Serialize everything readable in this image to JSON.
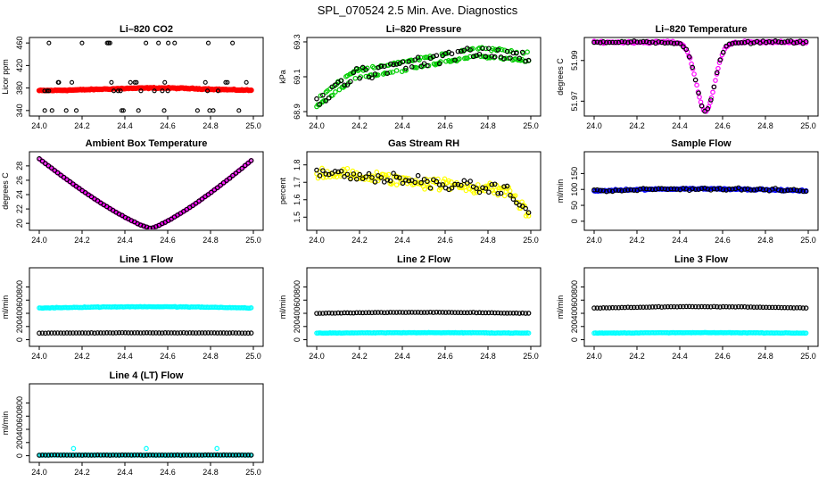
{
  "figure_title": "SPL_070524  2.5 Min. Ave. Diagnostics",
  "colors": {
    "red": "#ff0000",
    "green": "#00cc00",
    "magenta": "#ff00ff",
    "yellow": "#ffff00",
    "blue": "#0000ff",
    "cyan": "#00ffff",
    "black": "#000000"
  },
  "chart_data": [
    {
      "type": "scatter",
      "title": "Li–820 CO2",
      "ylabel": "Licor ppm",
      "xlim": [
        24.0,
        25.0
      ],
      "ylim": [
        335,
        465
      ],
      "xticks": [
        "24.0",
        "24.2",
        "24.4",
        "24.6",
        "24.8",
        "25.0"
      ],
      "yticks": [
        340,
        380,
        420,
        460
      ],
      "series": [
        {
          "name": "ave",
          "color": "red",
          "shape": "dense",
          "from": 375,
          "to": 375,
          "mid": 380,
          "sharp": 0.35,
          "noise": 1,
          "gap": 0
        },
        {
          "name": "raw",
          "color": "black",
          "shape": "scatter",
          "levels": [
            340,
            375,
            390,
            460
          ]
        }
      ]
    },
    {
      "type": "scatter",
      "title": "Li–820 Pressure",
      "ylabel": "kPa",
      "xlim": [
        24.0,
        25.0
      ],
      "ylim": [
        68.89,
        69.31
      ],
      "xticks": [
        "24.0",
        "24.2",
        "24.4",
        "24.6",
        "24.8",
        "25.0"
      ],
      "yticks": [
        {
          "v": 68.9,
          "l": "68.9"
        },
        {
          "v": 69.1,
          "l": "69.1"
        },
        {
          "v": 69.3,
          "l": "69.3"
        }
      ],
      "series": [
        {
          "name": "ave",
          "color": "green",
          "shape": "pressure",
          "offset": 0.0,
          "noise": 0.008,
          "gap": 0.045
        },
        {
          "name": "raw",
          "color": "black",
          "shape": "pressure",
          "offset": 0.0,
          "noise": 0.014,
          "sparse": true,
          "gap": 0.045
        }
      ]
    },
    {
      "type": "scatter",
      "title": "Li–820 Temperature",
      "ylabel": "degrees C",
      "xlim": [
        24.0,
        25.0
      ],
      "ylim": [
        51.964,
        52.0
      ],
      "xticks": [
        "24.0",
        "24.2",
        "24.4",
        "24.6",
        "24.8",
        "25.0"
      ],
      "yticks": [
        {
          "v": 51.97,
          "l": "51.97"
        },
        {
          "v": 51.99,
          "l": "51.99"
        }
      ],
      "series": [
        {
          "name": "ave",
          "color": "magenta",
          "shape": "dip",
          "base": 51.999,
          "low": 51.965,
          "center": 24.52,
          "width": 0.06,
          "noise": 0.0006
        },
        {
          "name": "raw",
          "color": "black",
          "shape": "dip",
          "base": 51.999,
          "low": 51.965,
          "center": 24.52,
          "width": 0.06,
          "noise": 0.0008,
          "sparse": true
        }
      ]
    },
    {
      "type": "scatter",
      "title": "Ambient Box Temperature",
      "ylabel": "degrees C",
      "xlim": [
        24.0,
        25.0
      ],
      "ylim": [
        19.4,
        29.6
      ],
      "xticks": [
        "24.0",
        "24.2",
        "24.4",
        "24.6",
        "24.8",
        "25.0"
      ],
      "yticks": [
        20,
        22,
        24,
        26,
        28
      ],
      "series": [
        {
          "name": "ave",
          "color": "magenta",
          "shape": "vee",
          "high": 29.0,
          "low": 19.3,
          "center": 24.52,
          "noise": 0.03
        },
        {
          "name": "raw",
          "color": "black",
          "shape": "vee",
          "high": 29.0,
          "low": 19.3,
          "center": 24.52,
          "noise": 0.05,
          "sparse": true
        }
      ]
    },
    {
      "type": "scatter",
      "title": "Gas Stream RH",
      "ylabel": "percent",
      "xlim": [
        24.0,
        25.0
      ],
      "ylim": [
        1.44,
        1.86
      ],
      "xticks": [
        "24.0",
        "24.2",
        "24.4",
        "24.6",
        "24.8",
        "25.0"
      ],
      "yticks": [
        1.5,
        1.6,
        1.7,
        1.8
      ],
      "series": [
        {
          "name": "ave",
          "color": "yellow",
          "shape": "rh",
          "noise": 0.045
        },
        {
          "name": "raw",
          "color": "black",
          "shape": "rh",
          "noise": 0.04,
          "sparse": true
        }
      ]
    },
    {
      "type": "scatter",
      "title": "Sample Flow",
      "ylabel": "ml/min",
      "xlim": [
        24.0,
        25.0
      ],
      "ylim": [
        -20,
        210
      ],
      "xticks": [
        "24.0",
        "24.2",
        "24.4",
        "24.6",
        "24.8",
        "25.0"
      ],
      "yticks": [
        0,
        50,
        100,
        150
      ],
      "series": [
        {
          "name": "ave",
          "color": "blue",
          "shape": "flat",
          "level": 95,
          "bump": 7,
          "noise": 3
        },
        {
          "name": "raw",
          "color": "black",
          "shape": "flat",
          "level": 95,
          "bump": 7,
          "noise": 5,
          "sparse": true
        }
      ]
    },
    {
      "type": "scatter",
      "title": "Line 1 Flow",
      "ylabel": "ml/min",
      "xlim": [
        24.0,
        25.0
      ],
      "ylim": [
        -60,
        1050
      ],
      "xticks": [
        "24.0",
        "24.2",
        "24.4",
        "24.6",
        "24.8",
        "25.0"
      ],
      "yticks": [
        0,
        200,
        400,
        600,
        800
      ],
      "series": [
        {
          "name": "line",
          "color": "cyan",
          "shape": "flat",
          "level": 480,
          "bump": 20,
          "noise": 6
        },
        {
          "name": "raw",
          "color": "black",
          "shape": "flat",
          "level": 100,
          "bump": 4,
          "noise": 3,
          "sparse": true
        }
      ]
    },
    {
      "type": "scatter",
      "title": "Line 2 Flow",
      "ylabel": "ml/min",
      "xlim": [
        24.0,
        25.0
      ],
      "ylim": [
        -60,
        1050
      ],
      "xticks": [
        "24.0",
        "24.2",
        "24.4",
        "24.6",
        "24.8",
        "25.0"
      ],
      "yticks": [
        0,
        200,
        400,
        600,
        800
      ],
      "series": [
        {
          "name": "line",
          "color": "cyan",
          "shape": "flat",
          "level": 100,
          "bump": 6,
          "noise": 4
        },
        {
          "name": "raw",
          "color": "black",
          "shape": "flat",
          "level": 400,
          "bump": 15,
          "noise": 5,
          "sparse": true
        }
      ]
    },
    {
      "type": "scatter",
      "title": "Line 3 Flow",
      "ylabel": "ml/min",
      "xlim": [
        24.0,
        25.0
      ],
      "ylim": [
        -60,
        1050
      ],
      "xticks": [
        "24.0",
        "24.2",
        "24.4",
        "24.6",
        "24.8",
        "25.0"
      ],
      "yticks": [
        0,
        200,
        400,
        600,
        800
      ],
      "series": [
        {
          "name": "line",
          "color": "cyan",
          "shape": "flat",
          "level": 100,
          "bump": 6,
          "noise": 4
        },
        {
          "name": "raw",
          "color": "black",
          "shape": "flat",
          "level": 480,
          "bump": 20,
          "noise": 5,
          "sparse": true
        }
      ]
    },
    {
      "type": "scatter",
      "title": "Line 4 (LT) Flow",
      "ylabel": "ml/min",
      "xlim": [
        24.0,
        25.0
      ],
      "ylim": [
        -60,
        1050
      ],
      "xticks": [
        "24.0",
        "24.2",
        "24.4",
        "24.6",
        "24.8",
        "25.0"
      ],
      "yticks": [
        0,
        200,
        400,
        600,
        800
      ],
      "series": [
        {
          "name": "line",
          "color": "cyan",
          "shape": "flat",
          "level": 10,
          "bump": 0,
          "noise": 3,
          "spikes": [
            24.16,
            24.5,
            24.83
          ]
        },
        {
          "name": "raw",
          "color": "black",
          "shape": "flat",
          "level": 10,
          "bump": 0,
          "noise": 3,
          "sparse": true
        }
      ]
    }
  ]
}
